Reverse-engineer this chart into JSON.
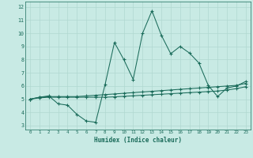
{
  "xlabel": "Humidex (Indice chaleur)",
  "bg_color": "#c8eae4",
  "line_color": "#1a6b5a",
  "grid_color": "#b0d8d0",
  "xlim": [
    -0.5,
    23.5
  ],
  "ylim": [
    2.7,
    12.4
  ],
  "xticks": [
    0,
    1,
    2,
    3,
    4,
    5,
    6,
    7,
    8,
    9,
    10,
    11,
    12,
    13,
    14,
    15,
    16,
    17,
    18,
    19,
    20,
    21,
    22,
    23
  ],
  "yticks": [
    3,
    4,
    5,
    6,
    7,
    8,
    9,
    10,
    11,
    12
  ],
  "series1_x": [
    0,
    1,
    2,
    3,
    4,
    5,
    6,
    7,
    8,
    9,
    10,
    11,
    12,
    13,
    14,
    15,
    16,
    17,
    18,
    19,
    20,
    21,
    22,
    23
  ],
  "series1_y": [
    5.0,
    5.15,
    5.25,
    4.65,
    4.55,
    3.85,
    3.35,
    3.25,
    6.1,
    9.3,
    8.0,
    6.5,
    10.0,
    11.7,
    9.85,
    8.45,
    9.0,
    8.5,
    7.75,
    6.05,
    5.2,
    5.85,
    6.0,
    6.35
  ],
  "series2_x": [
    0,
    1,
    2,
    3,
    4,
    5,
    6,
    7,
    8,
    9,
    10,
    11,
    12,
    13,
    14,
    15,
    16,
    17,
    18,
    19,
    20,
    21,
    22,
    23
  ],
  "series2_y": [
    5.0,
    5.15,
    5.2,
    5.2,
    5.2,
    5.2,
    5.25,
    5.3,
    5.35,
    5.4,
    5.45,
    5.5,
    5.55,
    5.6,
    5.65,
    5.7,
    5.75,
    5.8,
    5.85,
    5.9,
    5.95,
    6.0,
    6.05,
    6.2
  ],
  "series3_x": [
    0,
    1,
    2,
    3,
    4,
    5,
    6,
    7,
    8,
    9,
    10,
    11,
    12,
    13,
    14,
    15,
    16,
    17,
    18,
    19,
    20,
    21,
    22,
    23
  ],
  "series3_y": [
    5.0,
    5.1,
    5.15,
    5.15,
    5.15,
    5.15,
    5.15,
    5.15,
    5.15,
    5.18,
    5.22,
    5.26,
    5.3,
    5.34,
    5.38,
    5.42,
    5.46,
    5.5,
    5.54,
    5.58,
    5.62,
    5.7,
    5.8,
    5.95
  ]
}
